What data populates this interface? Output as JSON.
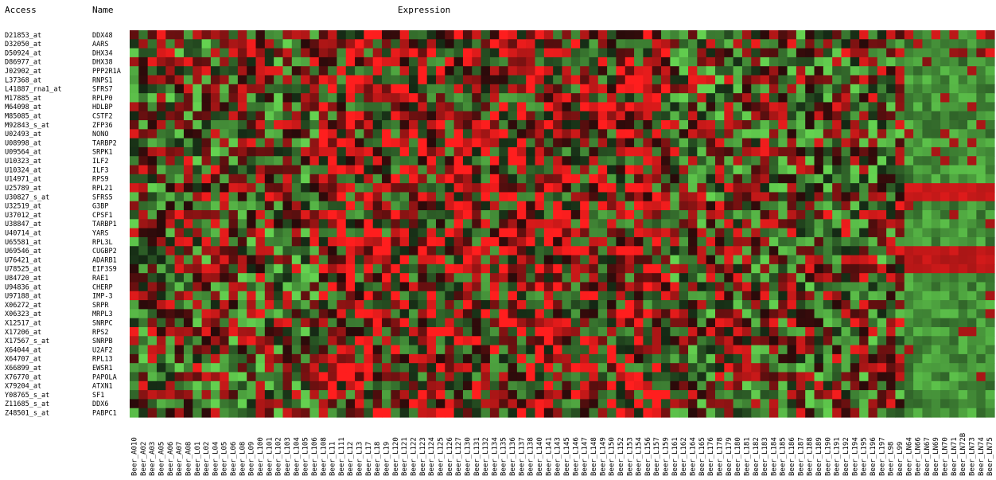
{
  "headers": {
    "access": "Access",
    "name": "Name",
    "expression": "Expression"
  },
  "chart_data": {
    "type": "heatmap",
    "color_scale": {
      "low": "#3fbf3f",
      "mid": "#000000",
      "high": "#ff1f1f"
    },
    "rows": [
      {
        "access": "D21853_at",
        "name": "DDX48"
      },
      {
        "access": "D32050_at",
        "name": "AARS"
      },
      {
        "access": "D50924_at",
        "name": "DHX34"
      },
      {
        "access": "D86977_at",
        "name": "DHX38"
      },
      {
        "access": "J02902_at",
        "name": "PPP2R1A"
      },
      {
        "access": "L37368_at",
        "name": "RNPS1"
      },
      {
        "access": "L41887_rna1_at",
        "name": "SFRS7"
      },
      {
        "access": "M17885_at",
        "name": "RPLP0"
      },
      {
        "access": "M64098_at",
        "name": "HDLBP"
      },
      {
        "access": "M85085_at",
        "name": "CSTF2"
      },
      {
        "access": "M92843_s_at",
        "name": "ZFP36"
      },
      {
        "access": "U02493_at",
        "name": "NONO"
      },
      {
        "access": "U08998_at",
        "name": "TARBP2"
      },
      {
        "access": "U09564_at",
        "name": "SRPK1"
      },
      {
        "access": "U10323_at",
        "name": "ILF2"
      },
      {
        "access": "U10324_at",
        "name": "ILF3"
      },
      {
        "access": "U14971_at",
        "name": "RPS9"
      },
      {
        "access": "U25789_at",
        "name": "RPL21"
      },
      {
        "access": "U30827_s_at",
        "name": "SFRS5"
      },
      {
        "access": "U32519_at",
        "name": "G3BP"
      },
      {
        "access": "U37012_at",
        "name": "CPSF1"
      },
      {
        "access": "U38847_at",
        "name": "TARBP1"
      },
      {
        "access": "U40714_at",
        "name": "YARS"
      },
      {
        "access": "U65581_at",
        "name": "RPL3L"
      },
      {
        "access": "U69546_at",
        "name": "CUGBP2"
      },
      {
        "access": "U76421_at",
        "name": "ADARB1"
      },
      {
        "access": "U78525_at",
        "name": "EIF3S9"
      },
      {
        "access": "U84720_at",
        "name": "RAE1"
      },
      {
        "access": "U94836_at",
        "name": "CHERP"
      },
      {
        "access": "U97188_at",
        "name": "IMP-3"
      },
      {
        "access": "X06272_at",
        "name": "SRPR"
      },
      {
        "access": "X06323_at",
        "name": "MRPL3"
      },
      {
        "access": "X12517_at",
        "name": "SNRPC"
      },
      {
        "access": "X17206_at",
        "name": "RPS2"
      },
      {
        "access": "X17567_s_at",
        "name": "SNRPB"
      },
      {
        "access": "X64044_at",
        "name": "U2AF2"
      },
      {
        "access": "X64707_at",
        "name": "RPL13"
      },
      {
        "access": "X66899_at",
        "name": "EWSR1"
      },
      {
        "access": "X76770_at",
        "name": "PAPOLA"
      },
      {
        "access": "X79204_at",
        "name": "ATXN1"
      },
      {
        "access": "Y08765_s_at",
        "name": "SF1"
      },
      {
        "access": "Z11685_s_at",
        "name": "DDX6"
      },
      {
        "access": "Z48501_s_at",
        "name": "PABPC1"
      }
    ],
    "columns": [
      "Beer_A010",
      "Beer_A02",
      "Beer_A03",
      "Beer_A05",
      "Beer_A06",
      "Beer_A07",
      "Beer_A08",
      "Beer_L01",
      "Beer_L02",
      "Beer_L04",
      "Beer_L05",
      "Beer_L06",
      "Beer_L08",
      "Beer_L09",
      "Beer_L100",
      "Beer_L101",
      "Beer_L102",
      "Beer_L103",
      "Beer_L104",
      "Beer_L105",
      "Beer_L106",
      "Beer_L108",
      "Beer_L11",
      "Beer_L111",
      "Beer_L12",
      "Beer_L13",
      "Beer_L17",
      "Beer_L18",
      "Beer_L19",
      "Beer_L120",
      "Beer_L121",
      "Beer_L122",
      "Beer_L123",
      "Beer_L124",
      "Beer_L125",
      "Beer_L126",
      "Beer_L127",
      "Beer_L130",
      "Beer_L131",
      "Beer_L132",
      "Beer_L134",
      "Beer_L135",
      "Beer_L136",
      "Beer_L137",
      "Beer_L138",
      "Beer_L140",
      "Beer_L141",
      "Beer_L143",
      "Beer_L145",
      "Beer_L146",
      "Beer_L147",
      "Beer_L148",
      "Beer_L149",
      "Beer_L150",
      "Beer_L152",
      "Beer_L153",
      "Beer_L154",
      "Beer_L156",
      "Beer_L157",
      "Beer_L159",
      "Beer_L161",
      "Beer_L162",
      "Beer_L164",
      "Beer_L165",
      "Beer_L176",
      "Beer_L178",
      "Beer_L179",
      "Beer_L180",
      "Beer_L181",
      "Beer_L182",
      "Beer_L183",
      "Beer_L184",
      "Beer_L185",
      "Beer_L186",
      "Beer_L187",
      "Beer_L188",
      "Beer_L189",
      "Beer_L190",
      "Beer_L191",
      "Beer_L192",
      "Beer_L194",
      "Beer_L195",
      "Beer_L196",
      "Beer_L197",
      "Beer_L98",
      "Beer_L99",
      "Beer_LN64",
      "Beer_LN66",
      "Beer_LN67",
      "Beer_LN69",
      "Beer_LN70",
      "Beer_LN71",
      "Beer_LN72B",
      "Beer_LN73",
      "Beer_LN74",
      "Beer_LN75"
    ],
    "note_values": "cell value -1..1 (green=low, black=0, red=high)",
    "tail_blocks": [
      {
        "rows": [
          0,
          1,
          2,
          3
        ],
        "from_col": 86,
        "pattern": "mostly-green-with-red"
      },
      {
        "rows": [
          17,
          18
        ],
        "from_col": 86,
        "value": 0.85
      },
      {
        "rows": [
          24,
          25,
          26
        ],
        "from_col": 86,
        "value": 0.8
      }
    ]
  }
}
